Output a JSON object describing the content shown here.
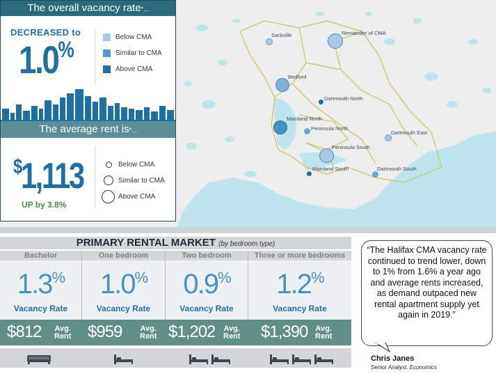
{
  "vacancy": {
    "header": "The overall vacancy rate",
    "header_suffix": "*...",
    "direction": "DECREASED to",
    "value": "1.0",
    "unit": "%",
    "legend": [
      {
        "label": "Below CMA",
        "color": "#aac8e3"
      },
      {
        "label": "Similar to CMA",
        "color": "#5a96c8"
      },
      {
        "label": "Above CMA",
        "color": "#1f6fa3"
      }
    ]
  },
  "rent": {
    "header": "The average rent is",
    "header_suffix": "*...",
    "value_prefix": "$",
    "value": "1,113",
    "change": "UP by 3.8%",
    "legend": [
      "Below CMA",
      "Similar to CMA",
      "Above CMA"
    ]
  },
  "map": {
    "zones": [
      {
        "label": "Sackville",
        "level": "below"
      },
      {
        "label": "Remainder of CMA",
        "level": "similar"
      },
      {
        "label": "Bedford",
        "level": "similar"
      },
      {
        "label": "Dartmouth North",
        "level": "above"
      },
      {
        "label": "Mainland North",
        "level": "above"
      },
      {
        "label": "Peninsula North",
        "level": "similar"
      },
      {
        "label": "Dartmouth East",
        "level": "below"
      },
      {
        "label": "Peninsula South",
        "level": "similar"
      },
      {
        "label": "Mainland South",
        "level": "above"
      },
      {
        "label": "Dartmouth South",
        "level": "similar"
      }
    ]
  },
  "primary": {
    "title": "PRIMARY RENTAL MARKET",
    "title_note": "(by bedroom type)",
    "vacancy_label": "Vacancy Rate",
    "rent_label_1": "Avg.",
    "rent_label_2": "Rent",
    "columns": [
      {
        "name": "Bachelor",
        "vacancy": "1.3",
        "rent": "$812",
        "icon": "sofa-bed-icon"
      },
      {
        "name": "One bedroom",
        "vacancy": "1.0",
        "rent": "$959",
        "icon": "bed-icon"
      },
      {
        "name": "Two bedroom",
        "vacancy": "0.9",
        "rent": "$1,202",
        "icon": "two-beds-icon"
      },
      {
        "name": "Three or more bedrooms",
        "vacancy": "1.2",
        "rent": "$1,390",
        "icon": "three-beds-icon"
      }
    ],
    "unit": "%"
  },
  "quote": {
    "text": "“The Halifax CMA vacancy rate continued to trend lower, down to 1% from 1.6% a year ago and average rents increased, as demand outpaced new rental apartment supply yet again in 2019.”",
    "author": "Chris Janes",
    "role": "Senior Analyst, Economics"
  }
}
